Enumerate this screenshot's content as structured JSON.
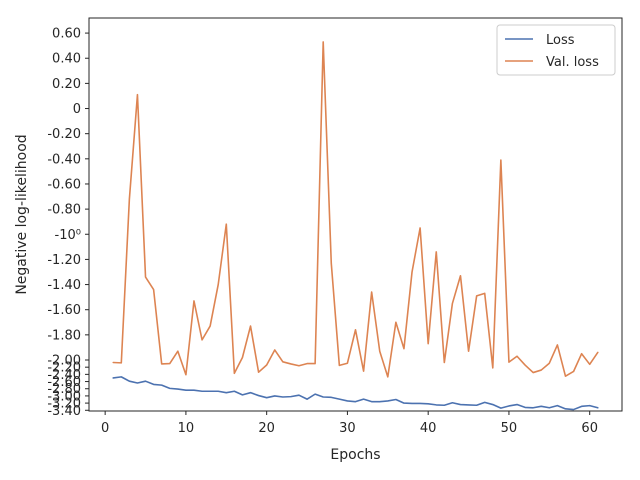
{
  "chart_data": {
    "type": "line",
    "xlabel": "Epochs",
    "ylabel": "Negative log-likelihood",
    "xlim": [
      -2,
      64
    ],
    "ylim": [
      -3.42,
      0.72
    ],
    "y_scale": "piecewise: linear above -2.0, compressed between -2.0 and -3.4",
    "grid": false,
    "legend_position": "top-right",
    "x_ticks": [
      {
        "value": 0,
        "label": "0"
      },
      {
        "value": 10,
        "label": "10"
      },
      {
        "value": 20,
        "label": "20"
      },
      {
        "value": 30,
        "label": "30"
      },
      {
        "value": 40,
        "label": "40"
      },
      {
        "value": 50,
        "label": "50"
      },
      {
        "value": 60,
        "label": "60"
      }
    ],
    "y_ticks": [
      {
        "value": 0.6,
        "label": "0.60"
      },
      {
        "value": 0.4,
        "label": "0.40"
      },
      {
        "value": 0.2,
        "label": "0.20"
      },
      {
        "value": 0.0,
        "label": "0"
      },
      {
        "value": -0.2,
        "label": "-0.20"
      },
      {
        "value": -0.4,
        "label": "-0.40"
      },
      {
        "value": -0.6,
        "label": "-0.60"
      },
      {
        "value": -0.8,
        "label": "-0.80"
      },
      {
        "value": -1.0,
        "label": "-10⁰"
      },
      {
        "value": -1.2,
        "label": "-1.20"
      },
      {
        "value": -1.4,
        "label": "-1.40"
      },
      {
        "value": -1.6,
        "label": "-1.60"
      },
      {
        "value": -1.8,
        "label": "-1.80"
      },
      {
        "value": -2.0,
        "label": "-2.00"
      },
      {
        "value": -2.2,
        "label": "-2.20"
      },
      {
        "value": -2.4,
        "label": "-2.40"
      },
      {
        "value": -2.6,
        "label": "-2.60"
      },
      {
        "value": -2.8,
        "label": "-2.80"
      },
      {
        "value": -3.0,
        "label": "-3.00"
      },
      {
        "value": -3.2,
        "label": "-3.20"
      },
      {
        "value": -3.4,
        "label": "-3.40"
      }
    ],
    "x": [
      1,
      2,
      3,
      4,
      5,
      6,
      7,
      8,
      9,
      10,
      11,
      12,
      13,
      14,
      15,
      16,
      17,
      18,
      19,
      20,
      21,
      22,
      23,
      24,
      25,
      26,
      27,
      28,
      29,
      30,
      31,
      32,
      33,
      34,
      35,
      36,
      37,
      38,
      39,
      40,
      41,
      42,
      43,
      44,
      45,
      46,
      47,
      48,
      49,
      50,
      51,
      52,
      53,
      54,
      55,
      56,
      57,
      58,
      59,
      60,
      61
    ],
    "series": [
      {
        "name": "Loss",
        "color": "#4c72b0",
        "values": [
          -2.5,
          -2.47,
          -2.59,
          -2.64,
          -2.59,
          -2.68,
          -2.7,
          -2.79,
          -2.81,
          -2.84,
          -2.84,
          -2.87,
          -2.87,
          -2.87,
          -2.91,
          -2.87,
          -2.97,
          -2.91,
          -2.99,
          -3.05,
          -3.0,
          -3.03,
          -3.02,
          -2.98,
          -3.09,
          -2.95,
          -3.03,
          -3.04,
          -3.09,
          -3.14,
          -3.16,
          -3.09,
          -3.16,
          -3.16,
          -3.14,
          -3.1,
          -3.2,
          -3.21,
          -3.21,
          -3.22,
          -3.25,
          -3.26,
          -3.19,
          -3.24,
          -3.25,
          -3.26,
          -3.18,
          -3.24,
          -3.34,
          -3.28,
          -3.24,
          -3.32,
          -3.33,
          -3.29,
          -3.33,
          -3.27,
          -3.36,
          -3.38,
          -3.29,
          -3.27,
          -3.33
        ]
      },
      {
        "name": "Val. loss",
        "color": "#dd8452",
        "values": [
          -2.07,
          -2.08,
          -0.72,
          0.11,
          -1.34,
          -1.44,
          -2.11,
          -2.1,
          -1.93,
          -2.41,
          -1.53,
          -1.84,
          -1.73,
          -1.4,
          -0.92,
          -2.37,
          -1.98,
          -1.73,
          -2.34,
          -2.14,
          -1.92,
          -2.05,
          -2.11,
          -2.16,
          -2.1,
          -2.1,
          0.53,
          -1.23,
          -2.15,
          -2.09,
          -1.76,
          -2.31,
          -1.46,
          -1.93,
          -2.47,
          -1.7,
          -1.91,
          -1.3,
          -0.95,
          -1.87,
          -1.14,
          -2.07,
          -1.55,
          -1.33,
          -1.93,
          -1.49,
          -1.47,
          -2.22,
          -0.41,
          -2.06,
          -1.97,
          -2.14,
          -2.35,
          -2.28,
          -2.09,
          -1.88,
          -2.45,
          -2.32,
          -1.95,
          -2.12,
          -1.94
        ]
      }
    ]
  }
}
